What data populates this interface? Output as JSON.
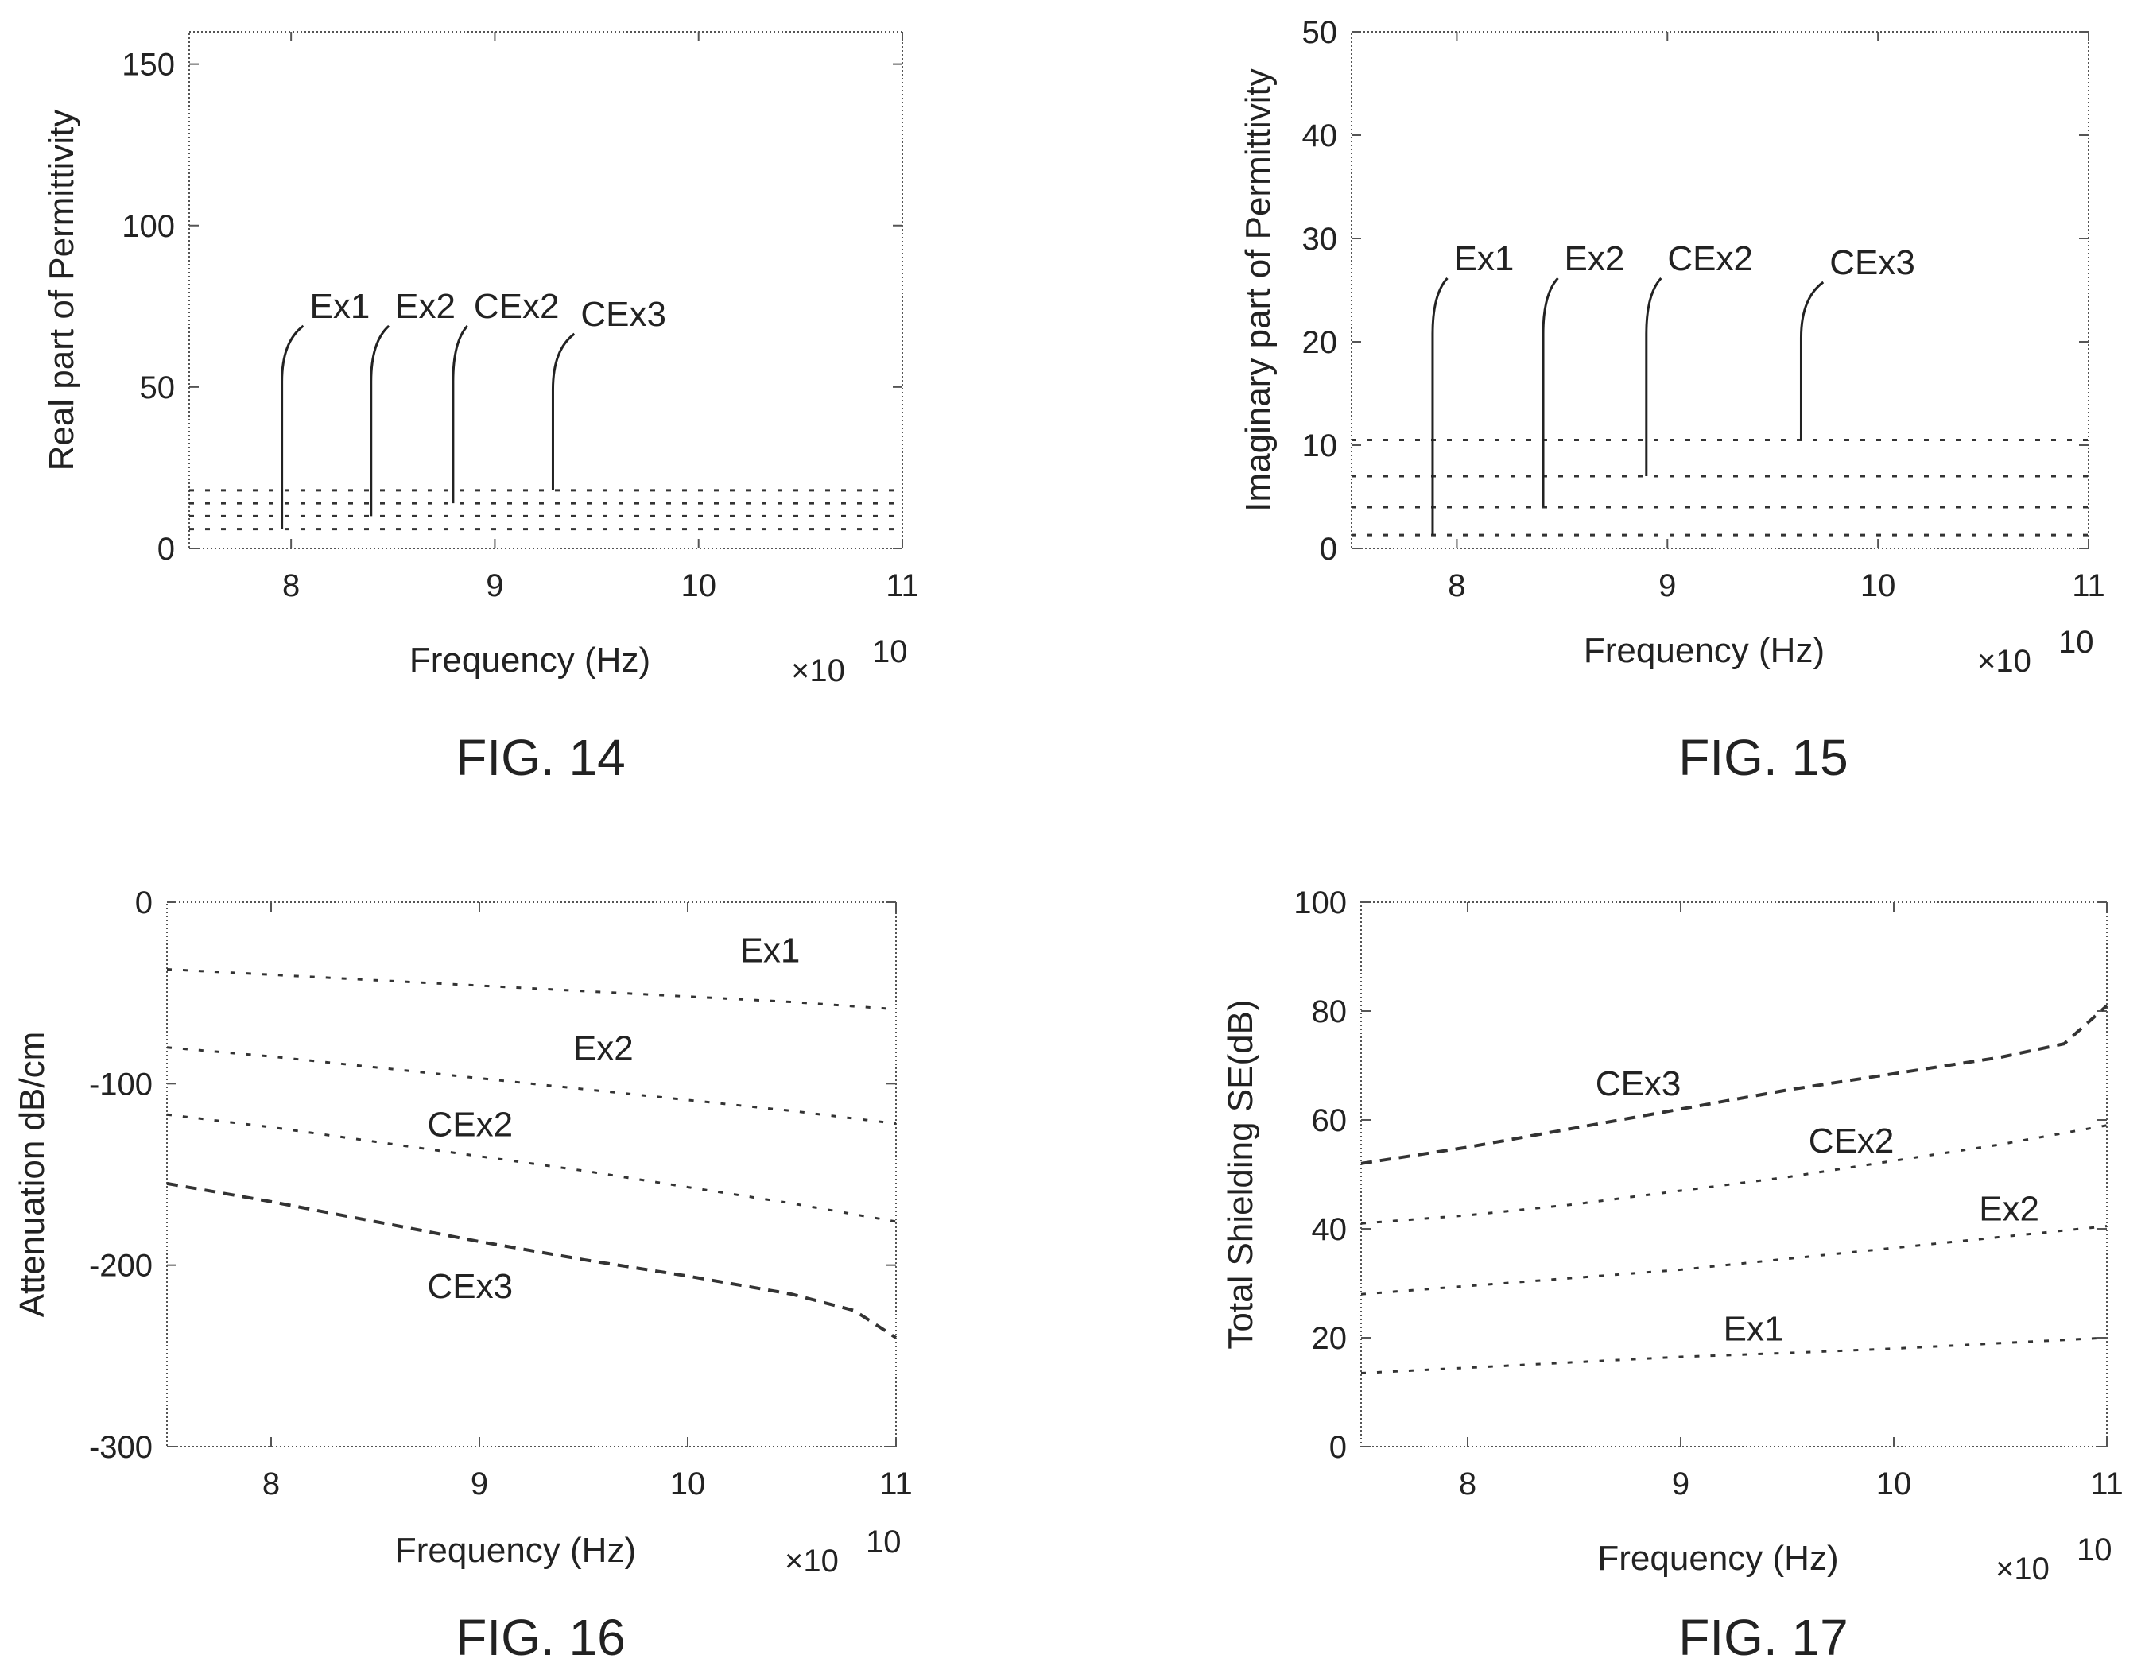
{
  "chart_data": [
    {
      "type": "line",
      "caption": "FIG. 14",
      "title": "",
      "xlabel": "Frequency (Hz)",
      "ylabel": "Real part of Permittivity",
      "x_multiplier": "×10",
      "x_multiplier_exp": "10",
      "xlim": [
        7.5,
        11
      ],
      "ylim": [
        0,
        160
      ],
      "xticks": [
        "8",
        "9",
        "10",
        "11"
      ],
      "yticks": [
        "0",
        "50",
        "100",
        "150"
      ],
      "grid": false,
      "series": [
        {
          "name": "Ex1",
          "style": "dashed",
          "x": [
            7.5,
            11
          ],
          "y": [
            6,
            6
          ]
        },
        {
          "name": "Ex2",
          "style": "dashed",
          "x": [
            7.5,
            11
          ],
          "y": [
            10,
            10
          ]
        },
        {
          "name": "CEx2",
          "style": "dashed",
          "x": [
            7.5,
            11
          ],
          "y": [
            14,
            14
          ]
        },
        {
          "name": "CEx3",
          "style": "dashed",
          "x": [
            7.5,
            11
          ],
          "y": [
            18,
            18
          ]
        }
      ]
    },
    {
      "type": "line",
      "caption": "FIG. 15",
      "title": "",
      "xlabel": "Frequency (Hz)",
      "ylabel": "Imaginary part of Permittivity",
      "x_multiplier": "×10",
      "x_multiplier_exp": "10",
      "xlim": [
        7.5,
        11
      ],
      "ylim": [
        0,
        50
      ],
      "xticks": [
        "8",
        "9",
        "10",
        "11"
      ],
      "yticks": [
        "0",
        "10",
        "20",
        "30",
        "40",
        "50"
      ],
      "grid": false,
      "series": [
        {
          "name": "Ex1",
          "style": "dashed",
          "x": [
            7.5,
            11
          ],
          "y": [
            1.3,
            1.3
          ]
        },
        {
          "name": "Ex2",
          "style": "dashed",
          "x": [
            7.5,
            11
          ],
          "y": [
            4,
            4
          ]
        },
        {
          "name": "CEx2",
          "style": "dashed",
          "x": [
            7.5,
            11
          ],
          "y": [
            7,
            7
          ]
        },
        {
          "name": "CEx3",
          "style": "dashed",
          "x": [
            7.5,
            11
          ],
          "y": [
            10.5,
            10.5
          ]
        }
      ]
    },
    {
      "type": "line",
      "caption": "FIG. 16",
      "title": "",
      "xlabel": "Frequency (Hz)",
      "ylabel": "Attenuation dB/cm",
      "x_multiplier": "×10",
      "x_multiplier_exp": "10",
      "xlim": [
        7.5,
        11
      ],
      "ylim": [
        -300,
        0
      ],
      "xticks": [
        "8",
        "9",
        "10",
        "11"
      ],
      "yticks": [
        "-300",
        "-200",
        "-100",
        "0"
      ],
      "grid": false,
      "series": [
        {
          "name": "Ex1",
          "style": "dashed",
          "x": [
            7.5,
            8.0,
            8.5,
            9.0,
            9.5,
            10.0,
            10.5,
            11.0
          ],
          "y": [
            -37,
            -40,
            -43,
            -46,
            -49,
            -52,
            -55,
            -59
          ]
        },
        {
          "name": "Ex2",
          "style": "dashed",
          "x": [
            7.5,
            8.0,
            8.5,
            9.0,
            9.5,
            10.0,
            10.5,
            11.0
          ],
          "y": [
            -80,
            -85,
            -91,
            -97,
            -103,
            -109,
            -115,
            -122
          ]
        },
        {
          "name": "CEx2",
          "style": "dashed",
          "x": [
            7.5,
            8.0,
            8.5,
            9.0,
            9.5,
            10.0,
            10.5,
            11.0
          ],
          "y": [
            -117,
            -124,
            -132,
            -140,
            -148,
            -157,
            -166,
            -176
          ]
        },
        {
          "name": "CEx3",
          "style": "dashed",
          "x": [
            7.5,
            8.0,
            8.5,
            9.0,
            9.5,
            10.0,
            10.5,
            10.8,
            11.0
          ],
          "y": [
            -155,
            -165,
            -176,
            -187,
            -197,
            -206,
            -216,
            -225,
            -240
          ]
        }
      ],
      "label_positions": [
        {
          "name": "Ex1",
          "x": 10.25,
          "y": -33
        },
        {
          "name": "Ex2",
          "x": 9.45,
          "y": -87
        },
        {
          "name": "CEx2",
          "x": 8.75,
          "y": -129
        },
        {
          "name": "CEx3",
          "x": 8.75,
          "y": -218
        }
      ]
    },
    {
      "type": "line",
      "caption": "FIG. 17",
      "title": "",
      "xlabel": "Frequency (Hz)",
      "ylabel": "Total Shielding SE(dB)",
      "x_multiplier": "×10",
      "x_multiplier_exp": "10",
      "xlim": [
        7.5,
        11
      ],
      "ylim": [
        0,
        100
      ],
      "xticks": [
        "8",
        "9",
        "10",
        "11"
      ],
      "yticks": [
        "0",
        "20",
        "40",
        "60",
        "80",
        "100"
      ],
      "grid": false,
      "series": [
        {
          "name": "Ex1",
          "style": "dashed",
          "x": [
            7.5,
            8.0,
            8.5,
            9.0,
            9.5,
            10.0,
            10.5,
            11.0
          ],
          "y": [
            13.5,
            14.5,
            15.5,
            16.5,
            17.2,
            18.0,
            19.0,
            20.0
          ]
        },
        {
          "name": "Ex2",
          "style": "dashed",
          "x": [
            7.5,
            8.0,
            8.5,
            9.0,
            9.5,
            10.0,
            10.5,
            11.0
          ],
          "y": [
            28,
            29.5,
            31,
            32.5,
            34.5,
            36.5,
            38.5,
            40.5
          ]
        },
        {
          "name": "CEx2",
          "style": "dashed",
          "x": [
            7.5,
            8.0,
            8.5,
            9.0,
            9.5,
            10.0,
            10.5,
            11.0
          ],
          "y": [
            41,
            42.5,
            44.5,
            47,
            49.5,
            52.5,
            55.5,
            59
          ]
        },
        {
          "name": "CEx3",
          "style": "dashed",
          "x": [
            7.5,
            8.0,
            8.5,
            9.0,
            9.5,
            10.0,
            10.5,
            10.8,
            11.0
          ],
          "y": [
            52,
            55,
            58.5,
            62,
            65.5,
            68.5,
            71.5,
            74,
            81
          ]
        }
      ],
      "label_positions": [
        {
          "name": "CEx3",
          "x": 8.6,
          "y": 64.5
        },
        {
          "name": "CEx2",
          "x": 9.6,
          "y": 54
        },
        {
          "name": "Ex2",
          "x": 10.4,
          "y": 41.5
        },
        {
          "name": "Ex1",
          "x": 9.2,
          "y": 19.5
        }
      ]
    }
  ]
}
